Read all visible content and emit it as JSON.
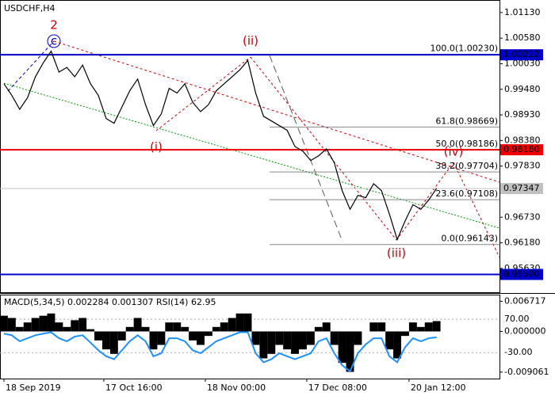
{
  "chart_data": [
    {
      "type": "line",
      "title": "USDCHF,H4",
      "color": "#000000",
      "values": [
        0.996,
        0.9935,
        0.9905,
        0.993,
        0.9975,
        1.0005,
        1.003,
        0.9985,
        0.9995,
        0.9975,
        1.0,
        0.996,
        0.9935,
        0.9885,
        0.9875,
        0.991,
        0.9945,
        0.997,
        0.9915,
        0.987,
        0.9895,
        0.995,
        0.994,
        0.996,
        0.992,
        0.99,
        0.9915,
        0.9945,
        0.996,
        0.9975,
        0.999,
        1.001,
        0.994,
        0.989,
        0.988,
        0.987,
        0.986,
        0.9825,
        0.9815,
        0.9795,
        0.9805,
        0.982,
        0.979,
        0.973,
        0.969,
        0.972,
        0.9715,
        0.9745,
        0.973,
        0.968,
        0.9625,
        0.9665,
        0.97,
        0.969,
        0.971,
        0.9735
      ],
      "xlim": [
        -0.5,
        63
      ],
      "xticks": [
        {
          "value": 0,
          "label": "18 Sep 2019"
        },
        {
          "value": 12.7,
          "label": "17 Oct 16:00"
        },
        {
          "value": 25.6,
          "label": "18 Nov 00:00"
        },
        {
          "value": 38.5,
          "label": "17 Dec 08:00"
        },
        {
          "value": 51.5,
          "label": "20 Jan 12:00"
        }
      ],
      "ylim": [
        0.951,
        1.014
      ],
      "yticks": [
        {
          "value": 1.0113,
          "label": "1.01130"
        },
        {
          "value": 1.0058,
          "label": "1.00580"
        },
        {
          "value": 1.0003,
          "label": "1.00030"
        },
        {
          "value": 0.9948,
          "label": "0.99480"
        },
        {
          "value": 0.9893,
          "label": "0.98930"
        },
        {
          "value": 0.9838,
          "label": "0.98380"
        },
        {
          "value": 0.9783,
          "label": "0.97830"
        },
        {
          "value": 0.9728,
          "label": "0.97280"
        },
        {
          "value": 0.9673,
          "label": "0.96730"
        },
        {
          "value": 0.9618,
          "label": "0.96180"
        },
        {
          "value": 0.9563,
          "label": "0.95630"
        }
      ],
      "levels": [
        {
          "value": 1.00222,
          "label": "1.00222",
          "color": "#0000cc"
        },
        {
          "value": 0.9818,
          "label": "0.98180",
          "color": "#ee0000"
        },
        {
          "value": 0.97347,
          "label": "0.97347",
          "color": "#c0c0c0"
        },
        {
          "value": 0.955,
          "label": "0.95500",
          "color": "#0000cc"
        }
      ],
      "fibonacci": [
        {
          "value": 1.0023,
          "label": "100.0(1.00230)"
        },
        {
          "value": 0.98669,
          "label": "61.8(0.98669)"
        },
        {
          "value": 0.98186,
          "label": "50.0(0.98186)"
        },
        {
          "value": 0.97704,
          "label": "38.2(0.97704)"
        },
        {
          "value": 0.97108,
          "label": "23.6(0.97108)"
        },
        {
          "value": 0.96143,
          "label": "0.0(0.96143)"
        }
      ],
      "wave_labels": [
        "2",
        "c",
        "(ii)",
        "(i)",
        "(iii)",
        "(iv)"
      ]
    },
    {
      "type": "bar",
      "title": "MACD(5,34,5) 0.002284 0.001307 RSI(14) 62.95",
      "color": "#000000",
      "values": [
        0.0035,
        0.003,
        0.001,
        0.002,
        0.003,
        0.0035,
        0.004,
        0.002,
        0.001,
        0.0025,
        0.003,
        0.0005,
        -0.002,
        -0.004,
        -0.005,
        -0.002,
        0.001,
        0.003,
        0.001,
        -0.004,
        -0.003,
        0.002,
        0.002,
        0.001,
        -0.002,
        -0.003,
        -0.001,
        0.001,
        0.002,
        0.003,
        0.004,
        0.004,
        -0.003,
        -0.006,
        -0.005,
        -0.003,
        -0.004,
        -0.005,
        -0.004,
        -0.003,
        0.001,
        0.002,
        -0.003,
        -0.007,
        -0.009,
        -0.003,
        0,
        0.002,
        0.002,
        -0.004,
        -0.006,
        -0.001,
        0.002,
        0.001,
        0.002,
        0.0023
      ],
      "ylim": [
        -0.0105,
        0.0082
      ],
      "yticks": [
        0.006717,
        {
          "value": 0,
          "label": "0.000000"
        },
        -0.009061
      ],
      "series": [
        {
          "color": "#1e90ff",
          "axis": "y2",
          "values": [
            27,
            22,
            4,
            13,
            22,
            27,
            31,
            13,
            4,
            18,
            22,
            0,
            -23,
            -41,
            -50,
            -23,
            4,
            22,
            4,
            -41,
            -32,
            13,
            13,
            4,
            -23,
            -32,
            -14,
            4,
            13,
            22,
            31,
            31,
            -32,
            -59,
            -50,
            -32,
            -41,
            -50,
            -41,
            -32,
            4,
            13,
            -32,
            -68,
            -86,
            -32,
            -5,
            13,
            13,
            -41,
            -59,
            -14,
            13,
            4,
            13,
            16
          ]
        }
      ],
      "y2lim": [
        -108,
        144
      ],
      "y2ticks": [
        {
          "value": 70,
          "label": "70.00"
        },
        {
          "value": -30,
          "label": "-30.00"
        }
      ]
    }
  ]
}
